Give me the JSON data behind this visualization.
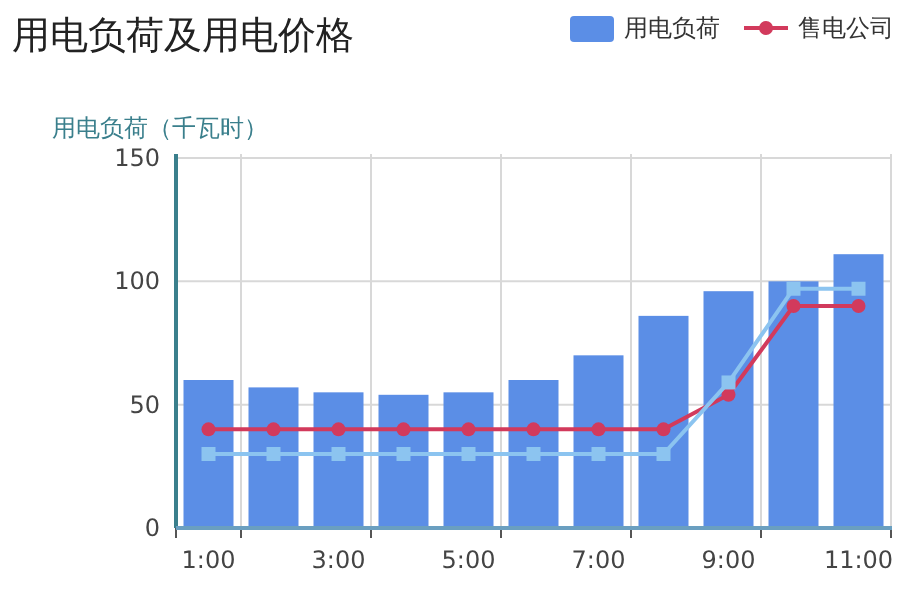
{
  "chart_data": {
    "type": "bar",
    "title": "用电负荷及用电价格",
    "ylabel": "用电负荷（千瓦时）",
    "categories": [
      "1:00",
      null,
      "3:00",
      null,
      "5:00",
      null,
      "7:00",
      null,
      "9:00",
      null,
      "11:00"
    ],
    "series": [
      {
        "name": "用电负荷",
        "color": "#5b8ee6",
        "values": [
          60,
          57,
          55,
          54,
          55,
          60,
          70,
          86,
          96,
          100,
          111
        ]
      },
      {
        "name": "售电公司",
        "type": "line",
        "color": "#d23a5c",
        "marker": "circle",
        "values": [
          40,
          40,
          40,
          40,
          40,
          40,
          40,
          40,
          54,
          90,
          90
        ]
      },
      {
        "type": "line",
        "color": "#8cc4f0",
        "marker": "square",
        "values": [
          30,
          30,
          30,
          30,
          30,
          30,
          30,
          30,
          59,
          97,
          97
        ]
      }
    ],
    "ylim": [
      0,
      150
    ],
    "yticks": [
      0,
      50,
      100,
      150
    ],
    "grid": true,
    "legend": "top right"
  }
}
